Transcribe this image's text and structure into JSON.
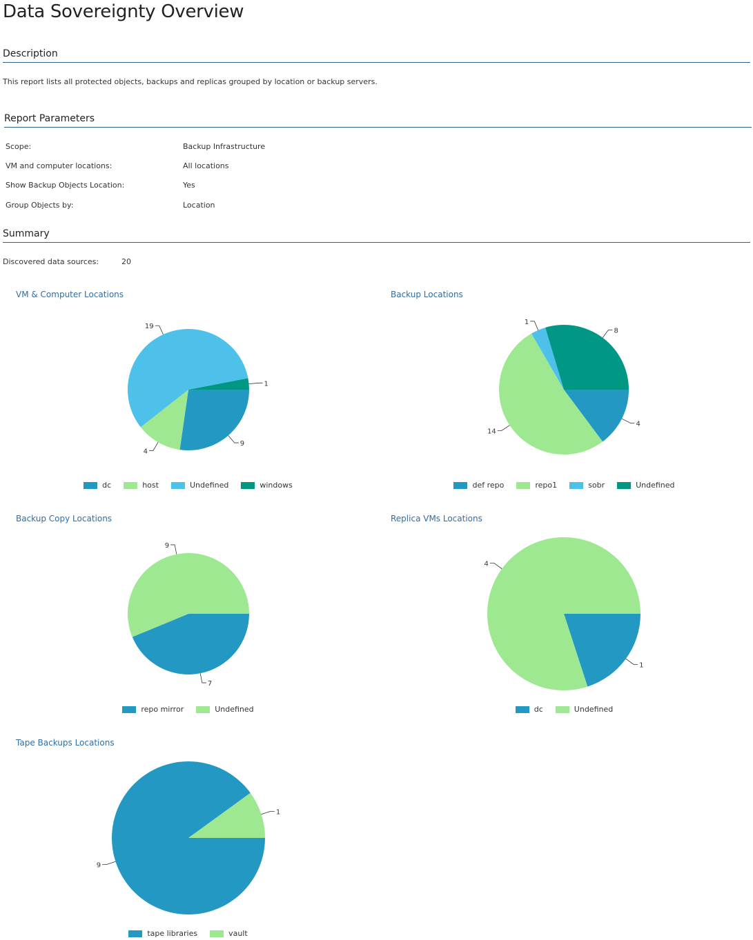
{
  "title": "Data Sovereignty Overview",
  "description": {
    "heading": "Description",
    "text": "This report lists all protected objects, backups and replicas grouped by location or backup servers."
  },
  "parameters": {
    "heading": "Report Parameters",
    "rows": [
      {
        "label": "Scope:",
        "value": "Backup Infrastructure"
      },
      {
        "label": "VM and computer locations:",
        "value": "All locations"
      },
      {
        "label": "Show Backup Objects Location:",
        "value": "Yes"
      },
      {
        "label": "Group Objects by:",
        "value": "Location"
      }
    ]
  },
  "summary": {
    "heading": "Summary",
    "label": "Discovered data sources:",
    "value": "20"
  },
  "colors": {
    "blue": "#2398c3",
    "light_green": "#9de891",
    "light_blue": "#4ec1ea",
    "teal": "#009885"
  },
  "chart_data": [
    {
      "type": "pie",
      "title": "VM & Computer Locations",
      "categories": [
        "dc",
        "host",
        "Undefined",
        "windows"
      ],
      "values": [
        9,
        4,
        19,
        1
      ],
      "colors": [
        "#2398c3",
        "#9de891",
        "#4ec1ea",
        "#009885"
      ],
      "legend": "bottom"
    },
    {
      "type": "pie",
      "title": "Backup Locations",
      "categories": [
        "def repo",
        "repo1",
        "sobr",
        "Undefined"
      ],
      "values": [
        4,
        14,
        1,
        8
      ],
      "colors": [
        "#2398c3",
        "#9de891",
        "#4ec1ea",
        "#009885"
      ],
      "legend": "bottom"
    },
    {
      "type": "pie",
      "title": "Backup Copy Locations",
      "categories": [
        "repo mirror",
        "Undefined"
      ],
      "values": [
        7,
        9
      ],
      "colors": [
        "#2398c3",
        "#9de891"
      ],
      "legend": "bottom"
    },
    {
      "type": "pie",
      "title": "Replica VMs Locations",
      "categories": [
        "dc",
        "Undefined"
      ],
      "values": [
        1,
        4
      ],
      "colors": [
        "#2398c3",
        "#9de891"
      ],
      "legend": "bottom"
    },
    {
      "type": "pie",
      "title": "Tape Backups Locations",
      "categories": [
        "tape libraries",
        "vault"
      ],
      "values": [
        9,
        1
      ],
      "colors": [
        "#2398c3",
        "#9de891"
      ],
      "legend": "bottom"
    }
  ]
}
